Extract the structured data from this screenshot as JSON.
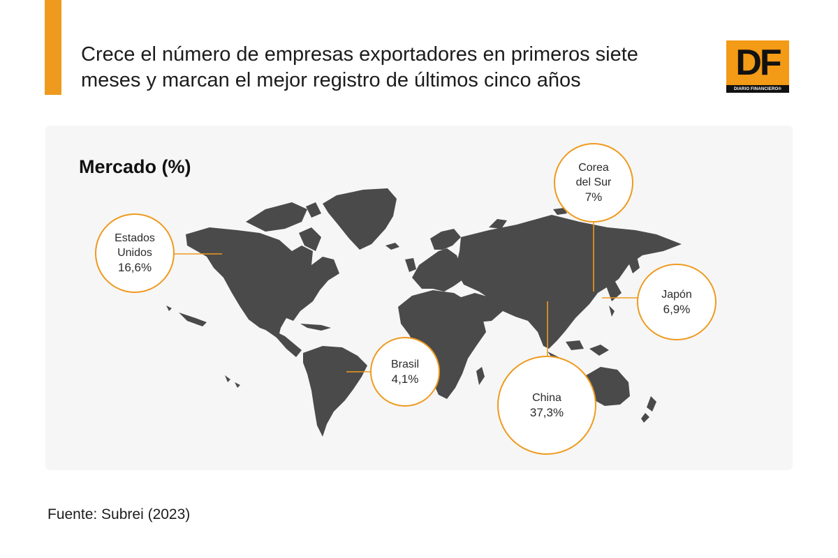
{
  "header": {
    "title": "Crece el número de empresas exportadores en primeros siete meses y marcan el mejor registro de últimos cinco años",
    "logo_letters": "DF",
    "logo_subtitle": "DIARIO FINANCIERO®",
    "accent_color": "#ee9a1e"
  },
  "map": {
    "title": "Mercado (%)",
    "land_color": "#4a4a4a",
    "markets": [
      {
        "name": "Estados\nUnidos",
        "value": "16,6%"
      },
      {
        "name": "Corea\ndel Sur",
        "value": "7%"
      },
      {
        "name": "Japón",
        "value": "6,9%"
      },
      {
        "name": "Brasil",
        "value": "4,1%"
      },
      {
        "name": "China",
        "value": "37,3%"
      }
    ]
  },
  "footer": {
    "source": "Fuente: Subrei (2023)"
  }
}
